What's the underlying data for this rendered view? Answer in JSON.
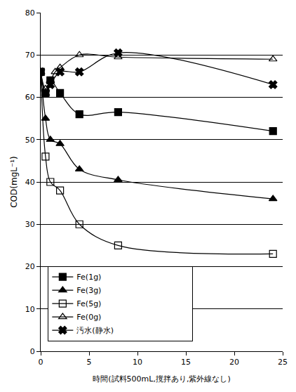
{
  "chart_data": {
    "type": "line",
    "x_label": "時間(試料500mL,撹拌あり,紫外線なし)",
    "y_label": "COD(mgL⁻¹)",
    "xlim": [
      0,
      25
    ],
    "xticks": [
      0,
      5,
      10,
      15,
      20,
      25
    ],
    "ylim": [
      0,
      80
    ],
    "yticks": [
      0,
      10,
      20,
      30,
      40,
      50,
      60,
      70,
      80
    ],
    "grid": true,
    "legend": "lower left",
    "series": [
      {
        "name": "Fe(1g)",
        "color": "#000000",
        "marker": "square",
        "line_style": "smooth",
        "x": [
          0,
          0.5,
          1,
          2,
          4,
          8,
          24
        ],
        "values": [
          66,
          61,
          64,
          61,
          56,
          56.5,
          52
        ]
      },
      {
        "name": "Fe(3g)",
        "color": "#000000",
        "marker": "triangle-up",
        "line_style": "smooth",
        "x": [
          0,
          0.5,
          1,
          2,
          4,
          8,
          24
        ],
        "values": [
          66,
          55,
          50,
          49,
          43,
          40.5,
          36
        ]
      },
      {
        "name": "Fe(5g)",
        "color": "#000000",
        "marker": "square-open",
        "line_style": "smooth",
        "x": [
          0,
          0.5,
          1,
          2,
          4,
          8,
          24
        ],
        "values": [
          66,
          46,
          40,
          38,
          30,
          25,
          23
        ]
      },
      {
        "name": "Fe(0g)",
        "color": "#000000",
        "marker": "triangle-up-open",
        "line_style": "smooth",
        "x": [
          0,
          0.5,
          1,
          1.5,
          2,
          4,
          8,
          24
        ],
        "values": [
          66,
          62,
          64,
          66,
          67,
          70,
          69.5,
          69
        ]
      },
      {
        "name": "汚水(静水)",
        "color": "#000000",
        "marker": "x",
        "line_style": "smooth",
        "x": [
          0,
          0.5,
          1,
          2,
          4,
          8,
          24
        ],
        "values": [
          66,
          61,
          63,
          66,
          66,
          70.5,
          63
        ]
      }
    ]
  }
}
